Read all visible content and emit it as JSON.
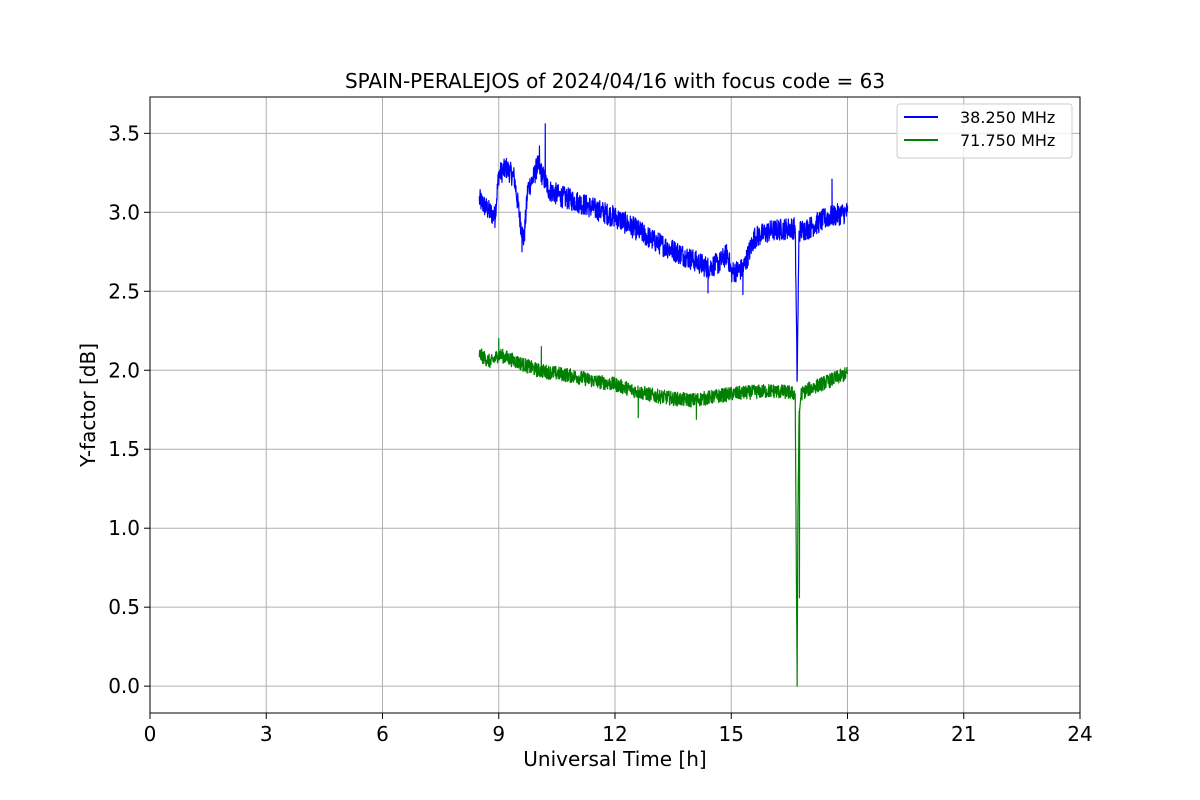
{
  "chart_data": {
    "type": "line",
    "title": "SPAIN-PERALEJOS of 2024/04/16 with focus code = 63",
    "xlabel": "Universal Time [h]",
    "ylabel": "Y-factor [dB]",
    "xlim": [
      0,
      24
    ],
    "ylim": [
      -0.17,
      3.73
    ],
    "x_ticks": [
      0,
      3,
      6,
      9,
      12,
      15,
      18,
      21,
      24
    ],
    "x_tick_labels": [
      "0",
      "3",
      "6",
      "9",
      "12",
      "15",
      "18",
      "21",
      "24"
    ],
    "y_ticks": [
      0.0,
      0.5,
      1.0,
      1.5,
      2.0,
      2.5,
      3.0,
      3.5
    ],
    "y_tick_labels": [
      "0.0",
      "0.5",
      "1.0",
      "1.5",
      "2.0",
      "2.5",
      "3.0",
      "3.5"
    ],
    "grid": true,
    "legend_position": "top-right",
    "series": [
      {
        "name": "38.250 MHz",
        "color": "#0000ff",
        "noise": 0.07,
        "points": [
          [
            8.5,
            3.08
          ],
          [
            8.7,
            3.02
          ],
          [
            8.9,
            2.97
          ],
          [
            9.0,
            3.24
          ],
          [
            9.2,
            3.28
          ],
          [
            9.4,
            3.22
          ],
          [
            9.55,
            2.95
          ],
          [
            9.65,
            2.82
          ],
          [
            9.75,
            3.15
          ],
          [
            9.9,
            3.22
          ],
          [
            10.0,
            3.3
          ],
          [
            10.1,
            3.25
          ],
          [
            10.3,
            3.14
          ],
          [
            10.6,
            3.1
          ],
          [
            11.0,
            3.07
          ],
          [
            11.5,
            3.02
          ],
          [
            12.0,
            2.97
          ],
          [
            12.5,
            2.9
          ],
          [
            13.0,
            2.82
          ],
          [
            13.5,
            2.76
          ],
          [
            14.0,
            2.7
          ],
          [
            14.4,
            2.65
          ],
          [
            14.7,
            2.68
          ],
          [
            14.9,
            2.74
          ],
          [
            15.0,
            2.62
          ],
          [
            15.3,
            2.64
          ],
          [
            15.6,
            2.84
          ],
          [
            16.0,
            2.88
          ],
          [
            16.5,
            2.9
          ],
          [
            16.65,
            2.9
          ],
          [
            16.7,
            1.93
          ],
          [
            16.75,
            2.88
          ],
          [
            17.0,
            2.9
          ],
          [
            17.5,
            2.97
          ],
          [
            18.0,
            3.0
          ]
        ],
        "spikes": [
          [
            10.2,
            3.56
          ],
          [
            10.05,
            3.42
          ],
          [
            9.6,
            2.75
          ],
          [
            14.4,
            2.49
          ],
          [
            15.3,
            2.48
          ],
          [
            17.6,
            3.21
          ]
        ]
      },
      {
        "name": "71.750 MHz",
        "color": "#008000",
        "noise": 0.045,
        "points": [
          [
            8.5,
            2.1
          ],
          [
            8.8,
            2.05
          ],
          [
            9.0,
            2.1
          ],
          [
            9.5,
            2.05
          ],
          [
            10.0,
            2.0
          ],
          [
            10.5,
            1.98
          ],
          [
            11.0,
            1.96
          ],
          [
            11.5,
            1.93
          ],
          [
            12.0,
            1.91
          ],
          [
            12.5,
            1.87
          ],
          [
            13.0,
            1.84
          ],
          [
            13.5,
            1.82
          ],
          [
            14.0,
            1.81
          ],
          [
            14.5,
            1.83
          ],
          [
            15.0,
            1.85
          ],
          [
            15.5,
            1.86
          ],
          [
            16.0,
            1.87
          ],
          [
            16.5,
            1.86
          ],
          [
            16.65,
            1.85
          ],
          [
            16.7,
            0.0
          ],
          [
            16.72,
            1.1
          ],
          [
            16.75,
            1.7
          ],
          [
            16.8,
            1.85
          ],
          [
            17.0,
            1.88
          ],
          [
            17.5,
            1.93
          ],
          [
            18.0,
            1.98
          ]
        ],
        "spikes": [
          [
            9.0,
            2.2
          ],
          [
            10.1,
            2.15
          ],
          [
            12.6,
            1.7
          ],
          [
            14.1,
            1.69
          ],
          [
            16.76,
            0.56
          ]
        ]
      }
    ]
  }
}
